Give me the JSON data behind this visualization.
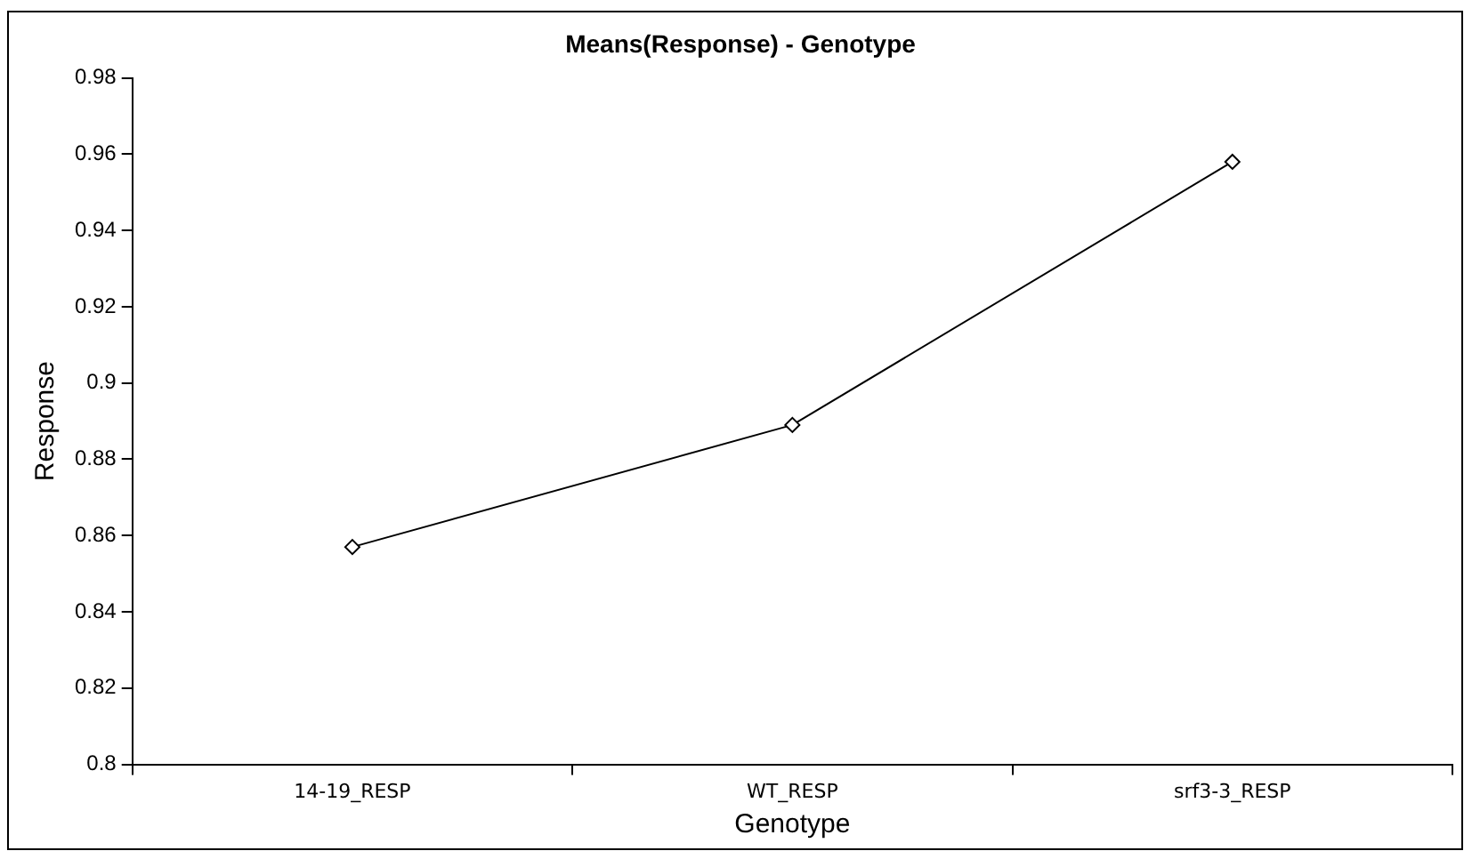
{
  "chart_data": {
    "type": "line",
    "title": "Means(Response) - Genotype",
    "xlabel": "Genotype",
    "ylabel": "Response",
    "categories": [
      "14-19_RESP",
      "WT_RESP",
      "srf3-3_RESP"
    ],
    "series": [
      {
        "color": "#000000",
        "values": [
          0.857,
          0.889,
          0.958
        ]
      }
    ],
    "ylim": [
      0.8,
      0.98
    ],
    "yticks": [
      0.8,
      0.82,
      0.84,
      0.86,
      0.88,
      0.9,
      0.92,
      0.94,
      0.96,
      0.98
    ],
    "grid": false,
    "legend": false,
    "marker": "diamond",
    "line_style": "solid"
  }
}
